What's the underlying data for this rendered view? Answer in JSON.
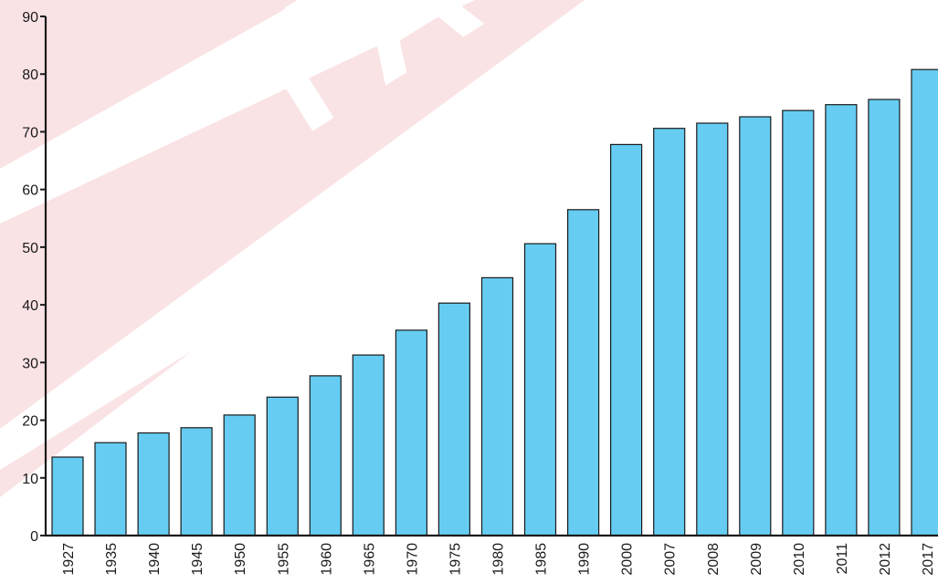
{
  "chart_data": {
    "type": "bar",
    "title": "",
    "xlabel": "",
    "ylabel": "",
    "ylim": [
      0,
      90
    ],
    "yticks": [
      0,
      10,
      20,
      30,
      40,
      50,
      60,
      70,
      80,
      90
    ],
    "grid": false,
    "legend": "none",
    "bar_color": "#66ccf2",
    "bar_outline_color": "#1a1a1a",
    "categories": [
      "1927",
      "1935",
      "1940",
      "1945",
      "1950",
      "1955",
      "1960",
      "1965",
      "1970",
      "1975",
      "1980",
      "1985",
      "1990",
      "2000",
      "2007",
      "2008",
      "2009",
      "2010",
      "2011",
      "2012",
      "2017"
    ],
    "values": [
      13.6,
      16.1,
      17.8,
      18.7,
      20.9,
      24.0,
      27.7,
      31.3,
      35.6,
      40.3,
      44.7,
      50.6,
      56.5,
      67.8,
      70.6,
      71.5,
      72.6,
      73.7,
      74.7,
      75.6,
      80.8
    ]
  },
  "watermark": {
    "text": "YAY",
    "color": "#f4c4c8"
  }
}
